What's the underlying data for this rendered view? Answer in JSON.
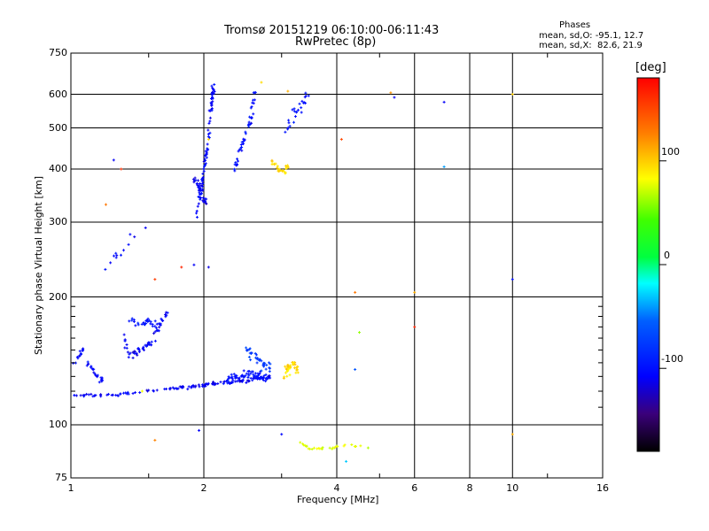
{
  "header": {
    "title_line1": "Tromsø 20151219 06:10:00-06:11:43",
    "title_line2": "RwPretec (8p)",
    "phases_label": "Phases",
    "stats_o": "mean, sd,O: -95.1, 12.7",
    "stats_x": "mean, sd,X:  82.6, 21.9"
  },
  "colorbar": {
    "unit": "deg",
    "ticks": [
      {
        "value": 100,
        "label": "100"
      },
      {
        "value": 0,
        "label": "0"
      },
      {
        "value": -100,
        "label": "-100"
      }
    ],
    "range": [
      -180,
      180
    ]
  },
  "chart_data": {
    "type": "scatter",
    "xlabel": "Frequency [MHz]",
    "ylabel": "Stationary phase Virtual Height [km]",
    "xscale": "log",
    "yscale": "log",
    "xlim": [
      1,
      16
    ],
    "ylim": [
      75,
      750
    ],
    "grid": true,
    "x_ticks": [
      1,
      2,
      4,
      6,
      8,
      10,
      16
    ],
    "x_tick_labels": [
      "1",
      "2",
      "4",
      "6",
      "8",
      "10",
      "16"
    ],
    "y_ticks": [
      75,
      100,
      200,
      300,
      400,
      500,
      600,
      750
    ],
    "y_tick_labels": [
      "75",
      "100",
      "200",
      "300",
      "400",
      "500",
      "600",
      "750"
    ],
    "traces": [
      {
        "x": [
          1.02,
          1.2,
          1.6,
          1.9,
          2.1,
          2.5,
          2.85
        ],
        "y": [
          118,
          117,
          121,
          123,
          125,
          127,
          130
        ],
        "phase": -110,
        "n": 140,
        "jx": 0.012,
        "jy": 0.012
      },
      {
        "x": [
          1.02,
          1.06,
          1.1,
          1.14,
          1.18
        ],
        "y": [
          140,
          150,
          138,
          130,
          128
        ],
        "phase": -105,
        "n": 35,
        "jx": 0.012,
        "jy": 0.03
      },
      {
        "x": [
          1.32,
          1.36,
          1.42,
          1.5,
          1.58,
          1.65
        ],
        "y": [
          160,
          145,
          148,
          155,
          170,
          185
        ],
        "phase": -110,
        "n": 60,
        "jx": 0.015,
        "jy": 0.035
      },
      {
        "x": [
          1.35,
          1.42,
          1.5,
          1.58
        ],
        "y": [
          178,
          172,
          175,
          168
        ],
        "phase": -100,
        "n": 28,
        "jx": 0.02,
        "jy": 0.03
      },
      {
        "x": [
          1.92,
          1.96,
          2.0,
          2.04,
          2.08,
          2.1
        ],
        "y": [
          310,
          350,
          400,
          450,
          560,
          630
        ],
        "phase": -105,
        "n": 85,
        "jx": 0.012,
        "jy": 0.02
      },
      {
        "x": [
          1.9,
          1.96,
          2.02
        ],
        "y": [
          380,
          360,
          330
        ],
        "phase": -110,
        "n": 30,
        "jx": 0.015,
        "jy": 0.03
      },
      {
        "x": [
          2.35,
          2.45,
          2.55,
          2.62
        ],
        "y": [
          400,
          460,
          520,
          620
        ],
        "phase": -100,
        "n": 45,
        "jx": 0.012,
        "jy": 0.02
      },
      {
        "x": [
          2.2,
          2.4,
          2.6,
          2.8
        ],
        "y": [
          125,
          130,
          132,
          128
        ],
        "phase": -100,
        "n": 70,
        "jx": 0.03,
        "jy": 0.03
      },
      {
        "x": [
          2.5,
          2.6,
          2.7,
          2.85
        ],
        "y": [
          150,
          145,
          140,
          135
        ],
        "phase": -75,
        "n": 35,
        "jx": 0.03,
        "jy": 0.04
      },
      {
        "x": [
          2.85,
          2.95,
          3.05,
          3.1
        ],
        "y": [
          420,
          400,
          395,
          410
        ],
        "phase": 95,
        "n": 25,
        "jx": 0.012,
        "jy": 0.02
      },
      {
        "x": [
          3.05,
          3.15,
          3.25
        ],
        "y": [
          130,
          140,
          135
        ],
        "phase": 95,
        "n": 40,
        "jx": 0.025,
        "jy": 0.04
      },
      {
        "x": [
          3.1,
          3.2,
          3.3,
          3.45
        ],
        "y": [
          500,
          540,
          560,
          600
        ],
        "phase": -100,
        "n": 25,
        "jx": 0.02,
        "jy": 0.04
      },
      {
        "x": [
          3.2,
          3.5,
          3.9,
          4.3,
          4.7
        ],
        "y": [
          92,
          88,
          88,
          90,
          88
        ],
        "phase": 75,
        "n": 30,
        "jx": 0.02,
        "jy": 0.01
      },
      {
        "x": [
          1.2,
          1.3,
          1.4,
          1.5
        ],
        "y": [
          230,
          260,
          280,
          300
        ],
        "phase": -100,
        "n": 12,
        "jx": 0.03,
        "jy": 0.04
      }
    ],
    "isolated_points": [
      {
        "x": 1.45,
        "y": 120,
        "phase": 80
      },
      {
        "x": 1.55,
        "y": 220,
        "phase": 155
      },
      {
        "x": 1.2,
        "y": 330,
        "phase": 130
      },
      {
        "x": 1.25,
        "y": 420,
        "phase": -110
      },
      {
        "x": 1.3,
        "y": 400,
        "phase": 160
      },
      {
        "x": 1.78,
        "y": 235,
        "phase": 165
      },
      {
        "x": 1.9,
        "y": 238,
        "phase": -110
      },
      {
        "x": 2.05,
        "y": 235,
        "phase": -115
      },
      {
        "x": 2.05,
        "y": 470,
        "phase": 100
      },
      {
        "x": 1.55,
        "y": 92,
        "phase": 125
      },
      {
        "x": 1.95,
        "y": 97,
        "phase": -110
      },
      {
        "x": 2.7,
        "y": 640,
        "phase": 95
      },
      {
        "x": 3.1,
        "y": 610,
        "phase": 110
      },
      {
        "x": 3.0,
        "y": 95,
        "phase": -105
      },
      {
        "x": 4.1,
        "y": 470,
        "phase": 150
      },
      {
        "x": 4.4,
        "y": 205,
        "phase": 130
      },
      {
        "x": 4.5,
        "y": 165,
        "phase": 60
      },
      {
        "x": 4.4,
        "y": 135,
        "phase": -60
      },
      {
        "x": 4.2,
        "y": 82,
        "phase": -30
      },
      {
        "x": 5.3,
        "y": 605,
        "phase": 120
      },
      {
        "x": 5.4,
        "y": 590,
        "phase": -110
      },
      {
        "x": 6.0,
        "y": 170,
        "phase": 165
      },
      {
        "x": 6.0,
        "y": 205,
        "phase": 110
      },
      {
        "x": 7.0,
        "y": 575,
        "phase": -110
      },
      {
        "x": 7.0,
        "y": 405,
        "phase": -40
      },
      {
        "x": 10.0,
        "y": 220,
        "phase": -100
      },
      {
        "x": 10.0,
        "y": 95,
        "phase": 110
      },
      {
        "x": 10.0,
        "y": 600,
        "phase": 100
      }
    ]
  }
}
